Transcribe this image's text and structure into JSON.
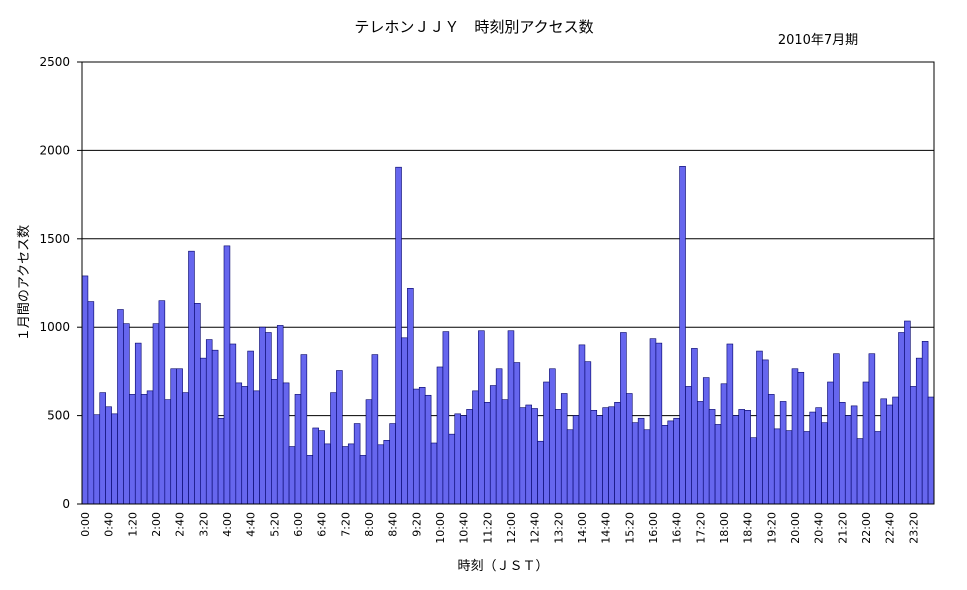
{
  "chart_data": {
    "type": "bar",
    "title": "テレホンＪＪＹ　時刻別アクセス数",
    "subtitle": "2010年7月期",
    "y_label": "１月間のアクセス数",
    "x_label": "時刻（ＪＳＴ）",
    "color": "#6666ee",
    "edge_color": "#000066",
    "grid": true,
    "ylim": [
      0,
      2500
    ],
    "yticks": [
      0,
      500,
      1000,
      1500,
      2000,
      2500
    ],
    "categories": [
      "0:00",
      null,
      null,
      null,
      "0:40",
      null,
      null,
      null,
      "1:20",
      null,
      null,
      null,
      "2:00",
      null,
      null,
      null,
      "2:40",
      null,
      null,
      null,
      "3:20",
      null,
      null,
      null,
      "4:00",
      null,
      null,
      null,
      "4:40",
      null,
      null,
      null,
      "5:20",
      null,
      null,
      null,
      "6:00",
      null,
      null,
      null,
      "6:40",
      null,
      null,
      null,
      "7:20",
      null,
      null,
      null,
      "8:00",
      null,
      null,
      null,
      "8:40",
      null,
      null,
      null,
      "9:20",
      null,
      null,
      null,
      "10:00",
      null,
      null,
      null,
      "10:40",
      null,
      null,
      null,
      "11:20",
      null,
      null,
      null,
      "12:00",
      null,
      null,
      null,
      "12:40",
      null,
      null,
      null,
      "13:20",
      null,
      null,
      null,
      "14:00",
      null,
      null,
      null,
      "14:40",
      null,
      null,
      null,
      "15:20",
      null,
      null,
      null,
      "16:00",
      null,
      null,
      null,
      "16:40",
      null,
      null,
      null,
      "17:20",
      null,
      null,
      null,
      "18:00",
      null,
      null,
      null,
      "18:40",
      null,
      null,
      null,
      "19:20",
      null,
      null,
      null,
      "20:00",
      null,
      null,
      null,
      "20:40",
      null,
      null,
      null,
      "21:20",
      null,
      null,
      null,
      "22:00",
      null,
      null,
      null,
      "22:40",
      null,
      null,
      null,
      "23:20",
      null,
      null,
      null
    ],
    "values": [
      1290,
      1145,
      505,
      630,
      550,
      510,
      1100,
      1020,
      620,
      910,
      620,
      640,
      1020,
      1150,
      590,
      765,
      765,
      630,
      1430,
      1135,
      825,
      930,
      870,
      485,
      1460,
      905,
      685,
      665,
      865,
      640,
      1000,
      970,
      705,
      1010,
      685,
      325,
      620,
      845,
      275,
      430,
      415,
      340,
      630,
      755,
      325,
      340,
      455,
      275,
      590,
      845,
      335,
      360,
      455,
      1905,
      940,
      1220,
      650,
      660,
      615,
      345,
      775,
      975,
      395,
      510,
      500,
      535,
      640,
      980,
      575,
      670,
      765,
      590,
      980,
      800,
      545,
      560,
      540,
      355,
      690,
      765,
      535,
      625,
      420,
      500,
      900,
      805,
      530,
      500,
      545,
      550,
      575,
      970,
      625,
      460,
      485,
      420,
      935,
      910,
      445,
      470,
      485,
      1910,
      665,
      880,
      580,
      715,
      535,
      450,
      680,
      905,
      500,
      535,
      530,
      375,
      865,
      815,
      620,
      425,
      580,
      415,
      765,
      745,
      410,
      520,
      545,
      460,
      690,
      850,
      575,
      500,
      555,
      370,
      690,
      850,
      410,
      595,
      560,
      605,
      970,
      1035,
      665,
      825,
      920,
      605
    ]
  }
}
